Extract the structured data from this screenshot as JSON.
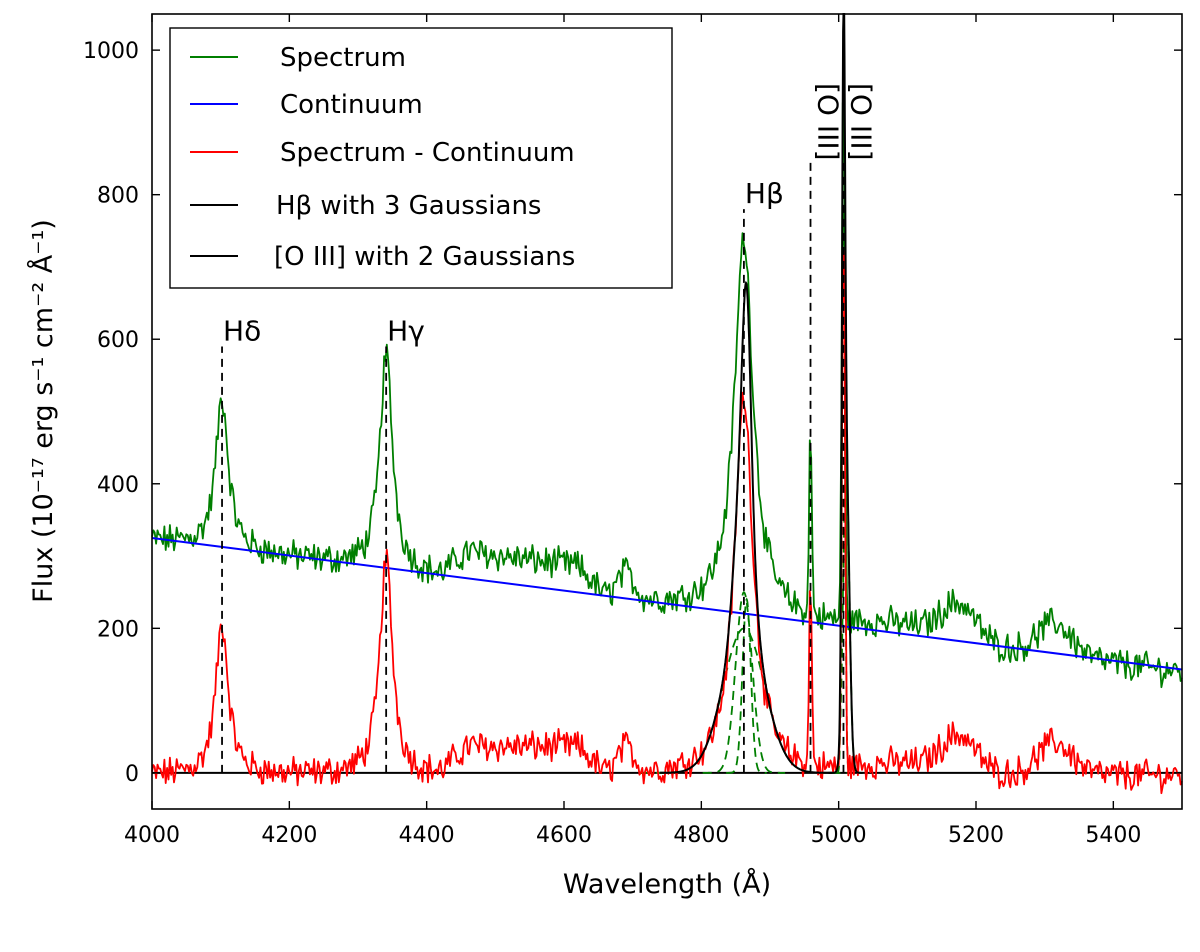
{
  "chart_data": {
    "type": "line",
    "xlabel": "Wavelength (Å)",
    "ylabel": "Flux (10⁻¹⁷ erg s⁻¹ cm⁻² Å⁻¹)",
    "xlim": [
      4000,
      5500
    ],
    "ylim": [
      -50,
      1050
    ],
    "xticks": [
      4000,
      4200,
      4400,
      4600,
      4800,
      5000,
      5200,
      5400
    ],
    "yticks": [
      0,
      200,
      400,
      600,
      800,
      1000
    ],
    "legend_position": "top-left",
    "legend": [
      {
        "label": "Spectrum",
        "color": "#007f00"
      },
      {
        "label": "Continuum",
        "color": "#0000ff"
      },
      {
        "label": "Spectrum - Continuum",
        "color": "#ff0000"
      },
      {
        "label": "Hβ with 3 Gaussians",
        "color": "#000000"
      },
      {
        "label": "[O III] with 2 Gaussians",
        "color": "#000000"
      }
    ],
    "continuum": {
      "x": [
        4000,
        5500
      ],
      "y": [
        325,
        143
      ]
    },
    "emission_lines": [
      {
        "name": "Hδ",
        "wavelength": 4102,
        "line_top": 590,
        "orientation": "horizontal"
      },
      {
        "name": "Hγ",
        "wavelength": 4341,
        "line_top": 590,
        "orientation": "horizontal"
      },
      {
        "name": "Hβ",
        "wavelength": 4862,
        "line_top": 780,
        "orientation": "horizontal"
      },
      {
        "name": "[O III]",
        "wavelength": 4959,
        "line_top": 850,
        "orientation": "vertical"
      },
      {
        "name": "[O III]",
        "wavelength": 5007,
        "line_top": 850,
        "orientation": "vertical"
      }
    ],
    "model": {
      "peaks": [
        {
          "name": "Hdelta",
          "center": 4102,
          "amp": 210,
          "fwhm": 22,
          "type": "lorentz"
        },
        {
          "name": "Hgamma",
          "center": 4341,
          "amp": 300,
          "fwhm": 22,
          "type": "lorentz"
        },
        {
          "name": "Hbeta",
          "center": 4862,
          "amp": 525,
          "fwhm": 33,
          "type": "lorentz"
        },
        {
          "name": "OIII4959",
          "center": 4959,
          "amp": 262,
          "fwhm": 4.5,
          "type": "gauss"
        },
        {
          "name": "OIII5007",
          "center": 5007,
          "amp": 785,
          "fwhm": 5,
          "type": "gauss"
        }
      ],
      "bumps": [
        {
          "x": 4460,
          "x2": 4620,
          "amp": 38
        },
        {
          "x": 4690,
          "width": 12,
          "amp": 35
        },
        {
          "x": 5175,
          "width": 25,
          "amp": 50
        },
        {
          "x": 5315,
          "width": 25,
          "amp": 45
        },
        {
          "x": 5090,
          "width": 60,
          "amp": 15
        }
      ],
      "hbeta_components": [
        {
          "center": 4862,
          "amp": 200,
          "sigma": 30
        },
        {
          "center": 4862,
          "amp": 250,
          "sigma": 12
        },
        {
          "center": 4866,
          "amp": 240,
          "sigma": 6
        }
      ],
      "oiii_components": [
        {
          "center": 5007,
          "amp": 785,
          "sigma": 2.2
        },
        {
          "center": 5011,
          "amp": 430,
          "sigma": 4.5
        }
      ]
    }
  }
}
